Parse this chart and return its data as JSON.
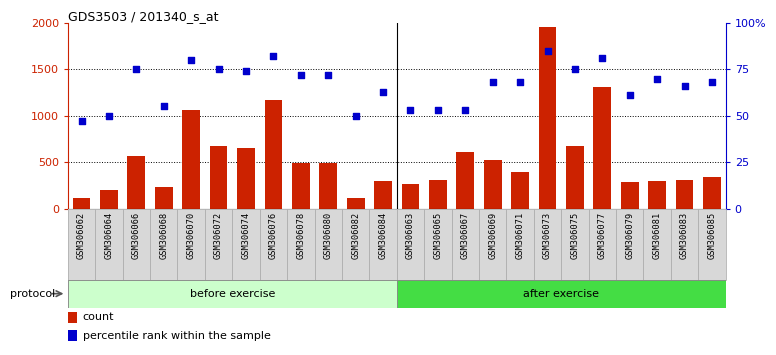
{
  "title": "GDS3503 / 201340_s_at",
  "categories": [
    "GSM306062",
    "GSM306064",
    "GSM306066",
    "GSM306068",
    "GSM306070",
    "GSM306072",
    "GSM306074",
    "GSM306076",
    "GSM306078",
    "GSM306080",
    "GSM306082",
    "GSM306084",
    "GSM306063",
    "GSM306065",
    "GSM306067",
    "GSM306069",
    "GSM306071",
    "GSM306073",
    "GSM306075",
    "GSM306077",
    "GSM306079",
    "GSM306081",
    "GSM306083",
    "GSM306085"
  ],
  "counts": [
    120,
    200,
    570,
    230,
    1060,
    670,
    650,
    1170,
    490,
    490,
    120,
    295,
    270,
    310,
    610,
    520,
    400,
    1960,
    670,
    1310,
    290,
    295,
    305,
    345
  ],
  "percentile_pct": [
    47,
    50,
    75,
    55,
    80,
    75,
    74,
    82,
    72,
    72,
    50,
    63,
    53,
    53,
    53,
    68,
    68,
    85,
    75,
    81,
    61,
    70,
    66,
    68
  ],
  "before_count": 12,
  "bar_color": "#cc2200",
  "dot_color": "#0000cc",
  "before_color": "#ccffcc",
  "after_color": "#44dd44",
  "cell_bg": "#d8d8d8",
  "protocol_label": "protocol",
  "before_label": "before exercise",
  "after_label": "after exercise",
  "legend_count": "count",
  "legend_pct": "percentile rank within the sample",
  "yticks_left": [
    0,
    500,
    1000,
    1500,
    2000
  ],
  "yticks_right": [
    0,
    25,
    50,
    75,
    100
  ],
  "ytick_labels_right": [
    "0",
    "25",
    "50",
    "75",
    "100%"
  ],
  "grid_ticks": [
    500,
    1000,
    1500
  ]
}
